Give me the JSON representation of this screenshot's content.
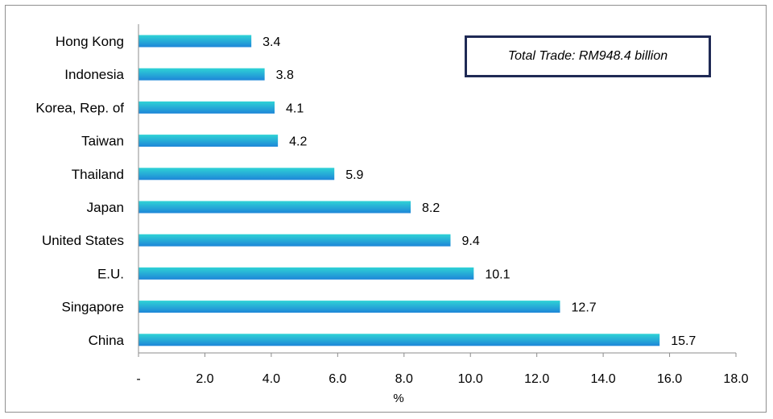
{
  "annotation": "Total Trade: RM948.4 billion",
  "chart_data": {
    "type": "bar",
    "orientation": "horizontal",
    "categories": [
      "Hong Kong",
      "Indonesia",
      "Korea, Rep. of",
      "Taiwan",
      "Thailand",
      "Japan",
      "United States",
      "E.U.",
      "Singapore",
      "China"
    ],
    "values": [
      3.4,
      3.8,
      4.1,
      4.2,
      5.9,
      8.2,
      9.4,
      10.1,
      12.7,
      15.7
    ],
    "value_labels": [
      "3.4",
      "3.8",
      "4.1",
      "4.2",
      "5.9",
      "8.2",
      "9.4",
      "10.1",
      "12.7",
      "15.7"
    ],
    "xlabel": "%",
    "ylabel": "",
    "xlim": [
      0,
      18
    ],
    "x_ticks": [
      0,
      2,
      4,
      6,
      8,
      10,
      12,
      14,
      16,
      18
    ],
    "x_tick_labels": [
      "-",
      "2.0",
      "4.0",
      "6.0",
      "8.0",
      "10.0",
      "12.0",
      "14.0",
      "16.0",
      "18.0"
    ],
    "grid": false,
    "bar_color_top": "#2fd3d6",
    "bar_color_bottom": "#1e86d8"
  }
}
